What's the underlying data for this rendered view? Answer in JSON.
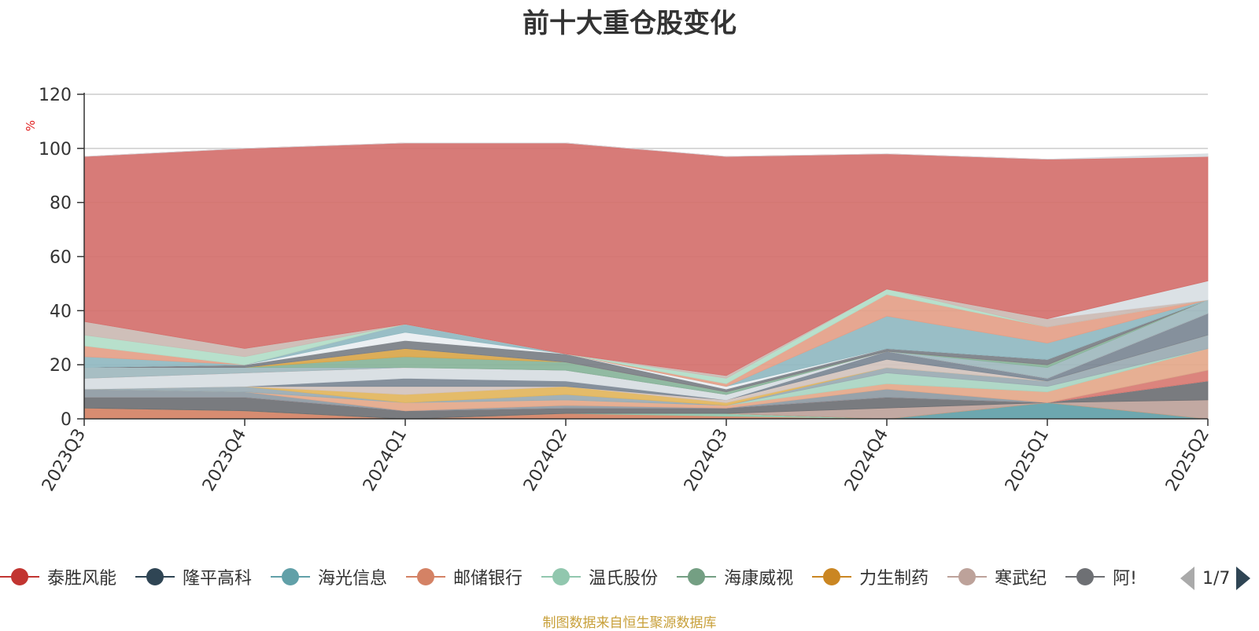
{
  "chart_data": {
    "type": "area",
    "title": "前十大重仓股变化",
    "ylabel": "%",
    "ylim": [
      0,
      120
    ],
    "yticks": [
      "0",
      "20",
      "40",
      "60",
      "80",
      "100",
      "120"
    ],
    "categories": [
      "2023Q3",
      "2023Q4",
      "2024Q1",
      "2024Q2",
      "2024Q3",
      "2024Q4",
      "2025Q1",
      "2025Q2"
    ],
    "stacked": true,
    "grid": true,
    "legend_position": "bottom",
    "series": [
      {
        "name": "泰胜风能",
        "color": "#c23531",
        "values": [
          0,
          0,
          0,
          0,
          0,
          0,
          0,
          0
        ]
      },
      {
        "name": "隆平高科",
        "color": "#2f4554",
        "values": [
          0,
          0,
          0,
          0,
          0,
          0,
          0,
          0
        ]
      },
      {
        "name": "海光信息",
        "color": "#61a0a8",
        "values": [
          0,
          0,
          0,
          0,
          0,
          0,
          6,
          0
        ]
      },
      {
        "name": "邮储银行",
        "color": "#d48265",
        "values": [
          4,
          3,
          0,
          2,
          1,
          0,
          0,
          0
        ]
      },
      {
        "name": "温氏股份",
        "color": "#91c7ae",
        "values": [
          0,
          0,
          0,
          0,
          1,
          0,
          0,
          0
        ]
      },
      {
        "name": "海康威视",
        "color": "#749f83",
        "values": [
          0,
          0,
          0,
          0,
          0,
          0,
          0,
          0
        ]
      },
      {
        "name": "力生制药",
        "color": "#ca8622",
        "values": [
          0,
          0,
          0,
          0,
          0,
          0,
          0,
          0
        ]
      },
      {
        "name": "寒武纪",
        "color": "#bda29a",
        "values": [
          0,
          0,
          0,
          0,
          0,
          4,
          0,
          7
        ]
      },
      {
        "name": "阿!",
        "color": "#6e7074",
        "values": [
          4,
          5,
          3,
          2,
          2,
          4,
          0,
          7
        ]
      },
      {
        "color": "#546570",
        "values": [
          0,
          0,
          0,
          0,
          0,
          0,
          0,
          0
        ]
      },
      {
        "color": "#c4ccd3",
        "values": [
          0,
          0,
          0,
          0,
          0,
          0,
          0,
          0
        ]
      },
      {
        "color": "#d87a72",
        "values": [
          0,
          0,
          0,
          0,
          0,
          0,
          0,
          4
        ]
      },
      {
        "color": "#8e9aa3",
        "values": [
          3,
          2,
          0,
          1,
          0,
          3,
          0,
          0
        ]
      },
      {
        "color": "#e4a88a",
        "values": [
          0,
          0,
          3,
          2,
          1,
          2,
          4,
          8
        ]
      },
      {
        "color": "#a9d5c2",
        "values": [
          0,
          0,
          0,
          0,
          0,
          4,
          2,
          0
        ]
      },
      {
        "color": "#9aaab2",
        "values": [
          0,
          2,
          0,
          2,
          0,
          2,
          2,
          5
        ]
      },
      {
        "color": "#e2b55c",
        "values": [
          0,
          0,
          3,
          3,
          1,
          0,
          0,
          0
        ]
      },
      {
        "color": "#d2c3bd",
        "values": [
          0,
          0,
          3,
          0,
          1,
          3,
          0,
          0
        ]
      },
      {
        "color": "#7b8794",
        "values": [
          0,
          0,
          3,
          2,
          0,
          3,
          1,
          8
        ]
      },
      {
        "color": "#d7dde2",
        "values": [
          4,
          5,
          4,
          4,
          2,
          0,
          0,
          0
        ]
      },
      {
        "color": "#e7a49b",
        "values": [
          0,
          0,
          0,
          0,
          0,
          0,
          0,
          0
        ]
      },
      {
        "color": "#9fb8be",
        "values": [
          4,
          2,
          0,
          0,
          0,
          0,
          4,
          5
        ]
      },
      {
        "color": "#88b49a",
        "values": [
          0,
          0,
          4,
          3,
          1,
          0,
          1,
          0
        ]
      },
      {
        "color": "#d9a64a",
        "values": [
          0,
          0,
          3,
          0,
          0,
          0,
          0,
          0
        ]
      },
      {
        "color": "#c9b4ad",
        "values": [
          0,
          0,
          0,
          0,
          0,
          0,
          0,
          0
        ]
      },
      {
        "color": "#7a7f86",
        "values": [
          0,
          1,
          3,
          3,
          1,
          1,
          2,
          0
        ]
      },
      {
        "color": "#e9eef1",
        "values": [
          0,
          0,
          3,
          0,
          1,
          0,
          0,
          0
        ]
      },
      {
        "color": "#90b9c1",
        "values": [
          4,
          0,
          3,
          0,
          0,
          12,
          6,
          0
        ]
      },
      {
        "color": "#e4a088",
        "values": [
          4,
          0,
          0,
          0,
          1,
          8,
          6,
          0
        ]
      },
      {
        "color": "#b2ddc8",
        "values": [
          4,
          3,
          0,
          0,
          2,
          2,
          0,
          0
        ]
      },
      {
        "color": "#cbbab3",
        "values": [
          5,
          3,
          0,
          0,
          1,
          0,
          3,
          0
        ]
      },
      {
        "color": "#d8dee3",
        "values": [
          0,
          0,
          0,
          0,
          0,
          0,
          0,
          7
        ]
      },
      {
        "color": "#d4706c",
        "values": [
          61,
          74,
          67,
          78,
          81,
          50,
          59,
          46
        ]
      },
      {
        "color": "#d7dde2",
        "values": [
          0,
          0,
          0,
          0,
          0,
          0,
          0,
          1
        ]
      }
    ]
  },
  "legend": {
    "page_indicator": "1/7"
  },
  "footer": {
    "source_note": "制图数据来自恒生聚源数据库"
  }
}
